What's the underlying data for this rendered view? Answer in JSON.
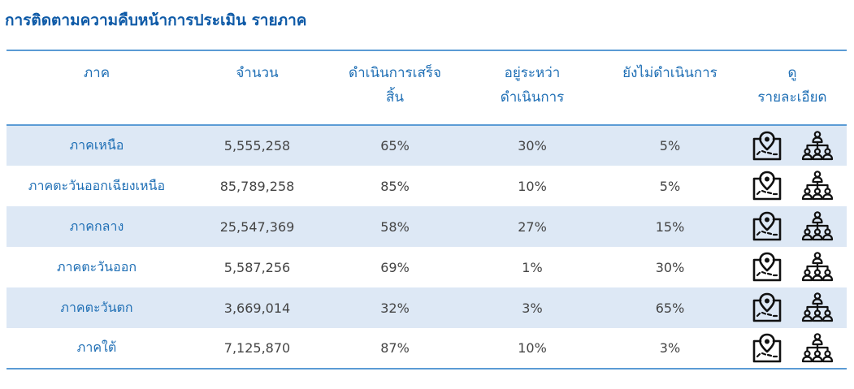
{
  "page_title": "การติดตามความคืบหน้าการประเมิน รายภาค",
  "table": {
    "headers": {
      "region": [
        "ภาค"
      ],
      "count": [
        "จำนวน"
      ],
      "done": [
        "ดำเนินการเสร็จ",
        "สิ้น"
      ],
      "in_progress": [
        "อยู่ระหว่า",
        "ดำเนินการ"
      ],
      "not_started": [
        "ยังไม่ดำเนินการ"
      ],
      "details": [
        "ดู",
        "รายละเอียด"
      ]
    },
    "rows": [
      {
        "region": "ภาคเหนือ",
        "count": "5,555,258",
        "done": "65%",
        "in_progress": "30%",
        "not_started": "5%"
      },
      {
        "region": "ภาคตะวันออกเฉียงเหนือ",
        "count": "85,789,258",
        "done": "85%",
        "in_progress": "10%",
        "not_started": "5%"
      },
      {
        "region": "ภาคกลาง",
        "count": "25,547,369",
        "done": "58%",
        "in_progress": "27%",
        "not_started": "15%"
      },
      {
        "region": "ภาคตะวันออก",
        "count": "5,587,256",
        "done": "69%",
        "in_progress": "1%",
        "not_started": "30%"
      },
      {
        "region": "ภาคตะวันตก",
        "count": "3,669,014",
        "done": "32%",
        "in_progress": "3%",
        "not_started": "65%"
      },
      {
        "region": "ภาคใต้",
        "count": "7,125,870",
        "done": "87%",
        "in_progress": "10%",
        "not_started": "3%"
      }
    ],
    "row_icons": [
      "map-location-icon",
      "organization-chart-icon"
    ]
  },
  "colors": {
    "title": "#0e5aa7",
    "header_text": "#1f6fb5",
    "rule": "#5b9bd5",
    "stripe": "#dde8f5",
    "cell_text": "#444444"
  }
}
